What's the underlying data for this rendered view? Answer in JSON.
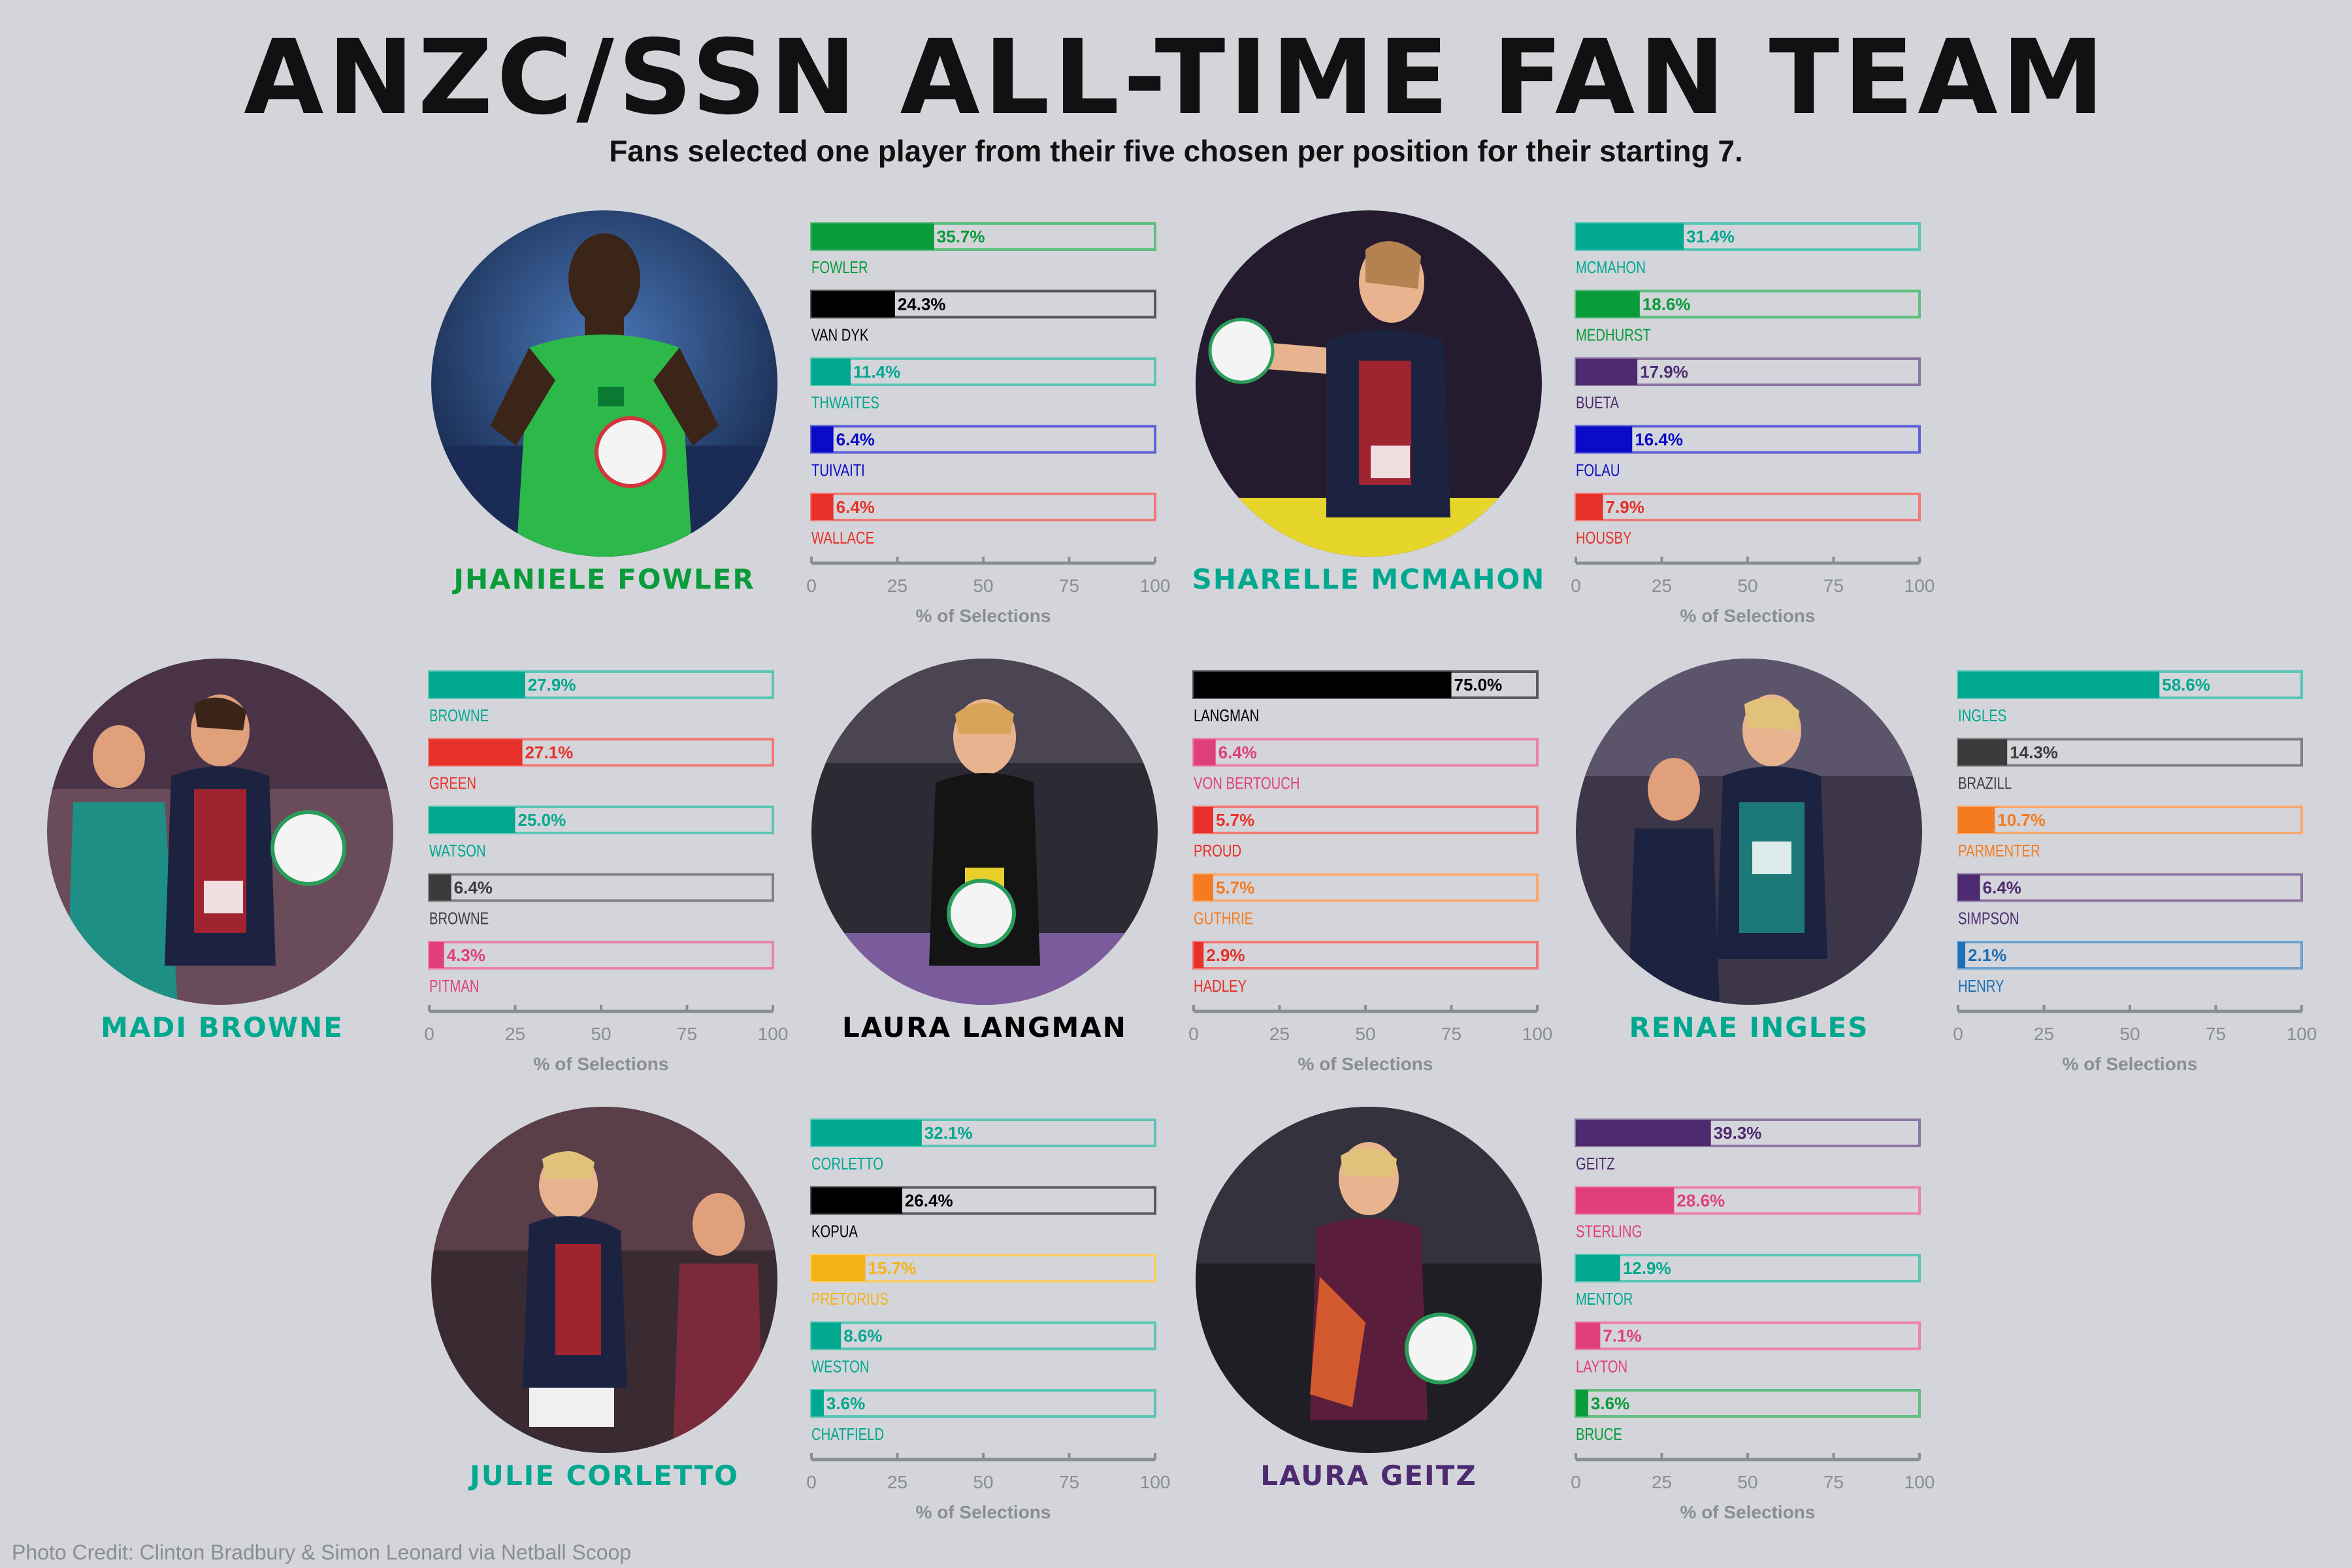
{
  "title": "ANZC/SSN ALL-TIME FAN TEAM",
  "subtitle": "Fans selected one player from their five chosen per position for their starting 7.",
  "credit": "Photo Credit: Clinton Bradbury & Simon Leonard via Netball Scoop",
  "colors": {
    "background": "#d3d5da",
    "fever_green": "#0a9b3a",
    "teal": "#00a88f",
    "black": "#000000",
    "navy": "#0b0bc7",
    "red": "#e8312a",
    "purple": "#4e2a70",
    "grey": "#3b3b3b",
    "pink": "#e13f7b",
    "orange": "#f47b20",
    "gold": "#f5b31a",
    "blue": "#1f6fb5",
    "axis": "#8a8d94"
  },
  "chart_data": [
    {
      "type": "bar",
      "orientation": "horizontal",
      "position_winner": "JHANIELE FOWLER",
      "winner_color": "#0a9b3a",
      "xlabel": "% of Selections",
      "xlim": [
        0,
        100
      ],
      "xticks": [
        "0",
        "25",
        "50",
        "75",
        "100"
      ],
      "categories": [
        "FOWLER",
        "VAN DYK",
        "THWAITES",
        "TUIVAITI",
        "WALLACE"
      ],
      "values": [
        35.7,
        24.3,
        11.4,
        6.4,
        6.4
      ],
      "labels": [
        "35.7%",
        "24.3%",
        "11.4%",
        "6.4%",
        "6.4%"
      ],
      "colors": [
        "#0a9b3a",
        "#000000",
        "#00a88f",
        "#0b0bc7",
        "#e8312a"
      ]
    },
    {
      "type": "bar",
      "orientation": "horizontal",
      "position_winner": "SHARELLE MCMAHON",
      "winner_color": "#00a88f",
      "xlabel": "% of Selections",
      "xlim": [
        0,
        100
      ],
      "xticks": [
        "0",
        "25",
        "50",
        "75",
        "100"
      ],
      "categories": [
        "MCMAHON",
        "MEDHURST",
        "BUETA",
        "FOLAU",
        "HOUSBY"
      ],
      "values": [
        31.4,
        18.6,
        17.9,
        16.4,
        7.9
      ],
      "labels": [
        "31.4%",
        "18.6%",
        "17.9%",
        "16.4%",
        "7.9%"
      ],
      "colors": [
        "#00a88f",
        "#0a9b3a",
        "#4e2a70",
        "#0b0bc7",
        "#e8312a"
      ]
    },
    {
      "type": "bar",
      "orientation": "horizontal",
      "position_winner": "MADI BROWNE",
      "winner_color": "#00a88f",
      "xlabel": "% of Selections",
      "xlim": [
        0,
        100
      ],
      "xticks": [
        "0",
        "25",
        "50",
        "75",
        "100"
      ],
      "categories": [
        "BROWNE",
        "GREEN",
        "WATSON",
        "BROWNE",
        "PITMAN"
      ],
      "values": [
        27.9,
        27.1,
        25.0,
        6.4,
        4.3
      ],
      "labels": [
        "27.9%",
        "27.1%",
        "25.0%",
        "6.4%",
        "4.3%"
      ],
      "colors": [
        "#00a88f",
        "#e8312a",
        "#00a88f",
        "#3b3b3b",
        "#e13f7b"
      ]
    },
    {
      "type": "bar",
      "orientation": "horizontal",
      "position_winner": "LAURA LANGMAN",
      "winner_color": "#000000",
      "xlabel": "% of Selections",
      "xlim": [
        0,
        100
      ],
      "xticks": [
        "0",
        "25",
        "50",
        "75",
        "100"
      ],
      "categories": [
        "LANGMAN",
        "VON BERTOUCH",
        "PROUD",
        "GUTHRIE",
        "HADLEY"
      ],
      "values": [
        75.0,
        6.4,
        5.7,
        5.7,
        2.9
      ],
      "labels": [
        "75.0%",
        "6.4%",
        "5.7%",
        "5.7%",
        "2.9%"
      ],
      "colors": [
        "#000000",
        "#e13f7b",
        "#e8312a",
        "#f47b20",
        "#e8312a"
      ]
    },
    {
      "type": "bar",
      "orientation": "horizontal",
      "position_winner": "RENAE INGLES",
      "winner_color": "#00a88f",
      "xlabel": "% of Selections",
      "xlim": [
        0,
        100
      ],
      "xticks": [
        "0",
        "25",
        "50",
        "75",
        "100"
      ],
      "categories": [
        "INGLES",
        "BRAZILL",
        "PARMENTER",
        "SIMPSON",
        "HENRY"
      ],
      "values": [
        58.6,
        14.3,
        10.7,
        6.4,
        2.1
      ],
      "labels": [
        "58.6%",
        "14.3%",
        "10.7%",
        "6.4%",
        "2.1%"
      ],
      "colors": [
        "#00a88f",
        "#3b3b3b",
        "#f47b20",
        "#4e2a70",
        "#1f6fb5"
      ]
    },
    {
      "type": "bar",
      "orientation": "horizontal",
      "position_winner": "JULIE CORLETTO",
      "winner_color": "#00a88f",
      "xlabel": "% of Selections",
      "xlim": [
        0,
        100
      ],
      "xticks": [
        "0",
        "25",
        "50",
        "75",
        "100"
      ],
      "categories": [
        "CORLETTO",
        "KOPUA",
        "PRETORIUS",
        "WESTON",
        "CHATFIELD"
      ],
      "values": [
        32.1,
        26.4,
        15.7,
        8.6,
        3.6
      ],
      "labels": [
        "32.1%",
        "26.4%",
        "15.7%",
        "8.6%",
        "3.6%"
      ],
      "colors": [
        "#00a88f",
        "#000000",
        "#f5b31a",
        "#00a88f",
        "#00a88f"
      ]
    },
    {
      "type": "bar",
      "orientation": "horizontal",
      "position_winner": "LAURA GEITZ",
      "winner_color": "#4e2a70",
      "xlabel": "% of Selections",
      "xlim": [
        0,
        100
      ],
      "xticks": [
        "0",
        "25",
        "50",
        "75",
        "100"
      ],
      "categories": [
        "GEITZ",
        "STERLING",
        "MENTOR",
        "LAYTON",
        "BRUCE"
      ],
      "values": [
        39.3,
        28.6,
        12.9,
        7.1,
        3.6
      ],
      "labels": [
        "39.3%",
        "28.6%",
        "12.9%",
        "7.1%",
        "3.6%"
      ],
      "colors": [
        "#4e2a70",
        "#e13f7b",
        "#00a88f",
        "#e13f7b",
        "#0a9b3a"
      ]
    }
  ]
}
